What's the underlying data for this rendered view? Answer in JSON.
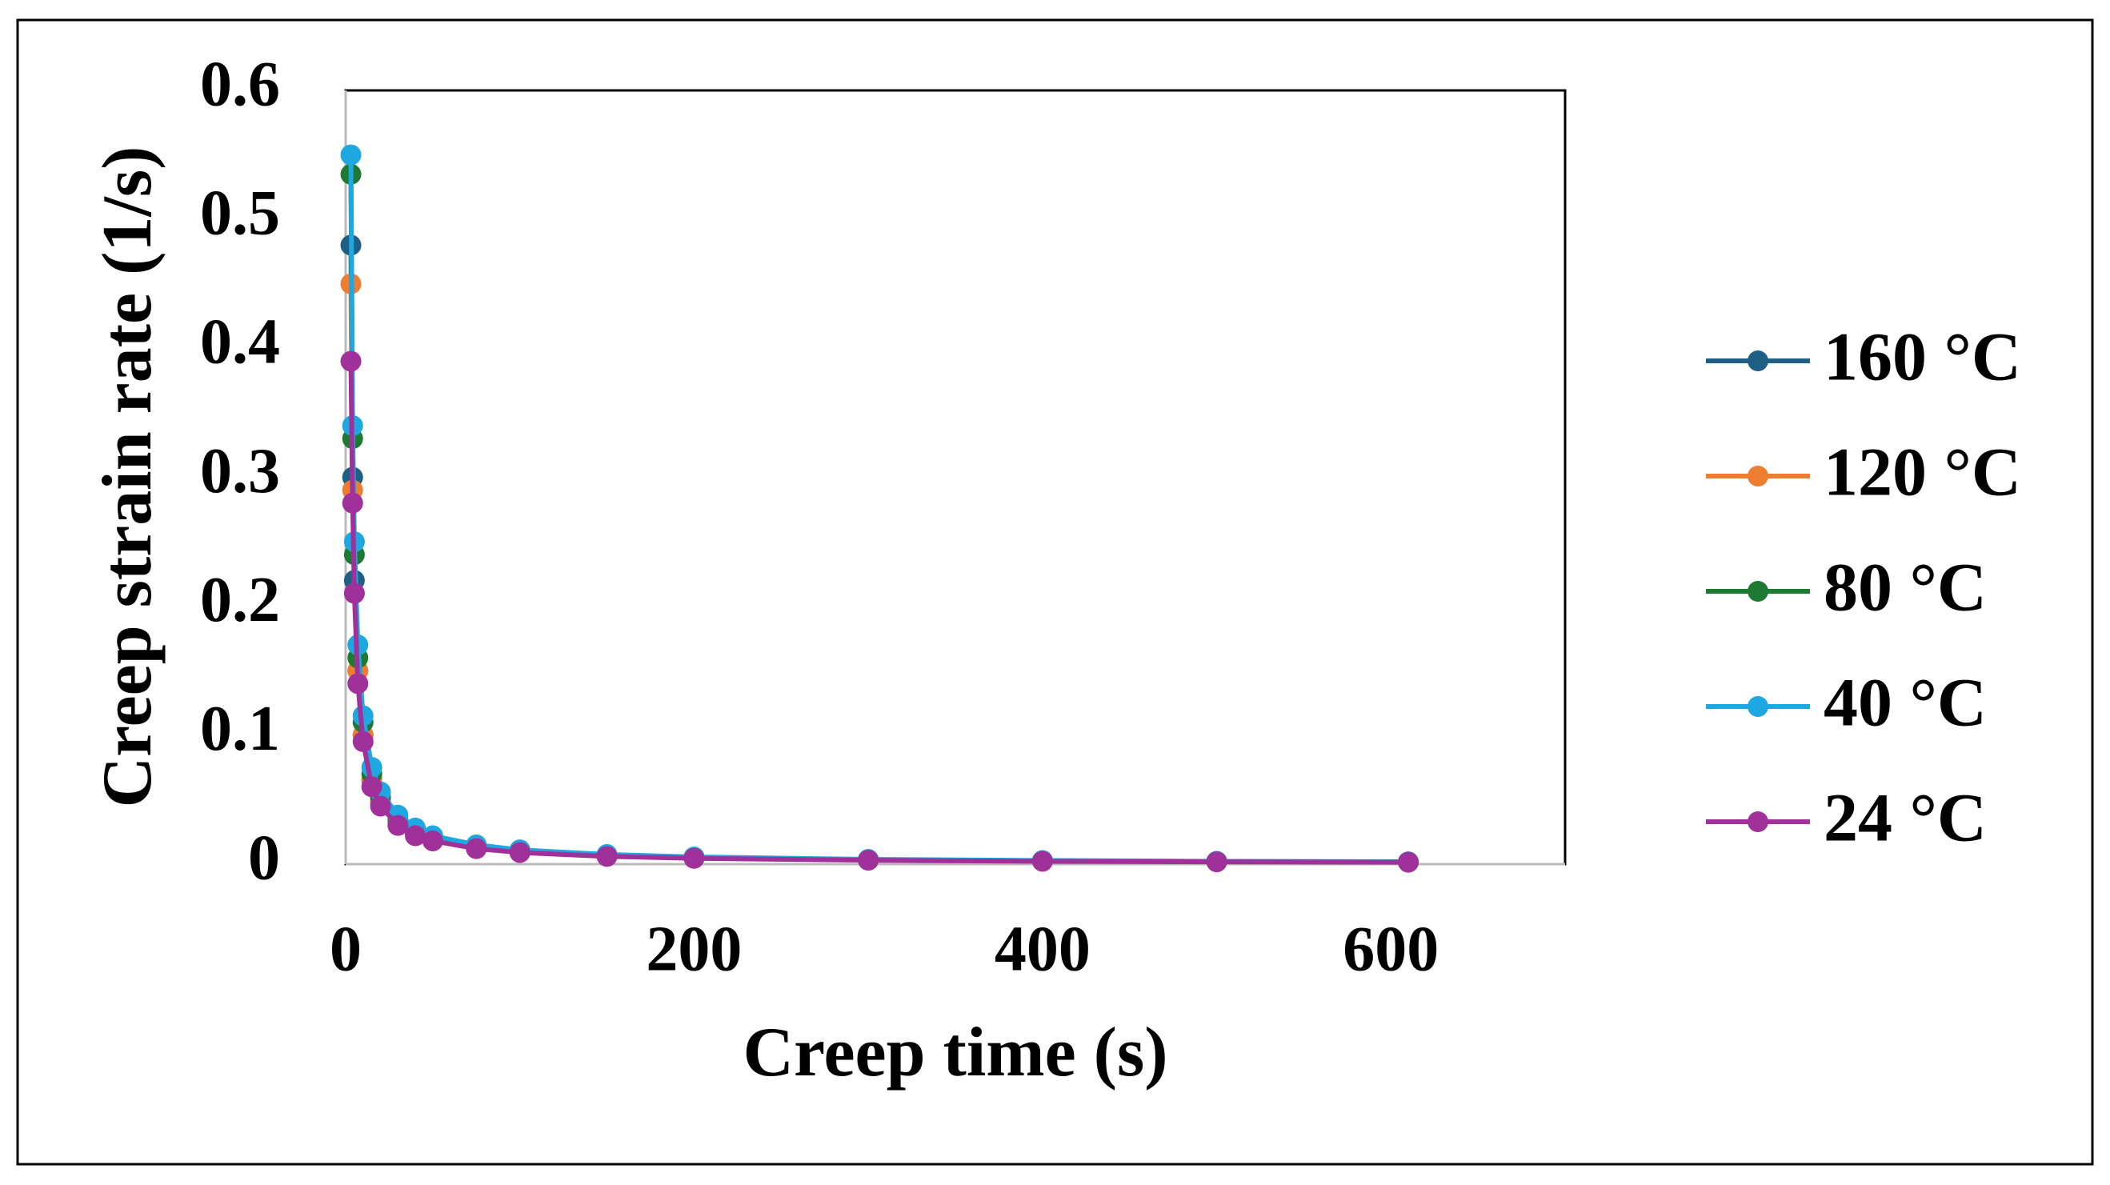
{
  "chart_data": {
    "type": "line",
    "x_label": "Creep time (s)",
    "y_label": "Creep strain rate (1/s)",
    "x": [
      3,
      4,
      5,
      7,
      10,
      15,
      20,
      30,
      40,
      50,
      75,
      100,
      150,
      200,
      300,
      400,
      500,
      610
    ],
    "series": [
      {
        "name": "160 °C",
        "color": "#1f5f86",
        "values": [
          0.48,
          0.3,
          0.22,
          0.15,
          0.1,
          0.065,
          0.048,
          0.032,
          0.024,
          0.019,
          0.013,
          0.01,
          0.0065,
          0.005,
          0.0033,
          0.0025,
          0.002,
          0.0016
        ]
      },
      {
        "name": "120 °C",
        "color": "#ed7d31",
        "values": [
          0.45,
          0.29,
          0.21,
          0.15,
          0.1,
          0.066,
          0.049,
          0.033,
          0.025,
          0.02,
          0.013,
          0.01,
          0.0066,
          0.005,
          0.0033,
          0.0025,
          0.002,
          0.0016
        ]
      },
      {
        "name": "80 °C",
        "color": "#1e7a32",
        "values": [
          0.535,
          0.33,
          0.24,
          0.16,
          0.11,
          0.07,
          0.052,
          0.035,
          0.026,
          0.021,
          0.014,
          0.011,
          0.007,
          0.0053,
          0.0035,
          0.0027,
          0.0021,
          0.0017
        ]
      },
      {
        "name": "40 °C",
        "color": "#1ea7e1",
        "values": [
          0.55,
          0.34,
          0.25,
          0.17,
          0.115,
          0.075,
          0.056,
          0.038,
          0.028,
          0.022,
          0.015,
          0.011,
          0.0075,
          0.0056,
          0.0037,
          0.0028,
          0.0022,
          0.0018
        ]
      },
      {
        "name": "24 °C",
        "color": "#a0309a",
        "values": [
          0.39,
          0.28,
          0.21,
          0.14,
          0.095,
          0.06,
          0.045,
          0.03,
          0.022,
          0.018,
          0.012,
          0.009,
          0.006,
          0.0045,
          0.003,
          0.0022,
          0.0018,
          0.0015
        ]
      }
    ],
    "xlim": [
      0,
      700
    ],
    "xticks": [
      0,
      200,
      400,
      600
    ],
    "ylim": [
      0,
      0.6
    ],
    "yticks": [
      0,
      0.1,
      0.2,
      0.3,
      0.4,
      0.5,
      0.6
    ],
    "grid": false,
    "legend": "right"
  }
}
